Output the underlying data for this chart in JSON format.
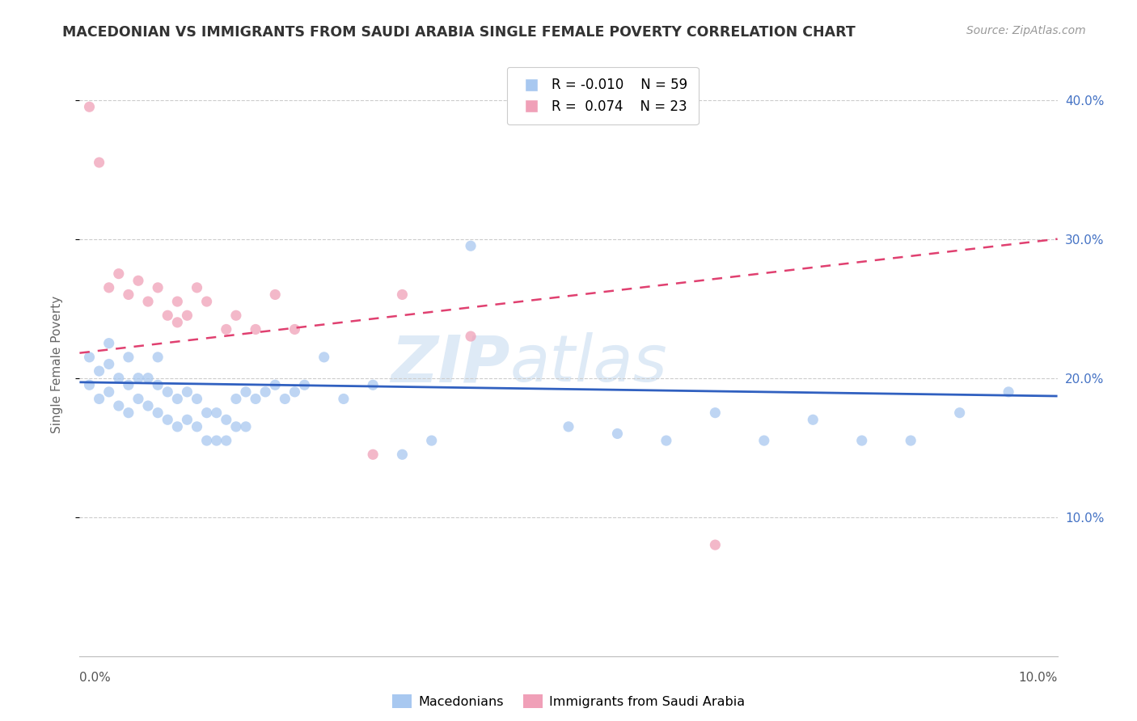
{
  "title": "MACEDONIAN VS IMMIGRANTS FROM SAUDI ARABIA SINGLE FEMALE POVERTY CORRELATION CHART",
  "source": "Source: ZipAtlas.com",
  "ylabel": "Single Female Poverty",
  "watermark_text": "ZIP",
  "watermark_text2": "atlas",
  "legend_macedonian_R": "-0.010",
  "legend_macedonian_N": "59",
  "legend_saudi_R": "0.074",
  "legend_saudi_N": "23",
  "macedonian_color": "#A8C8F0",
  "saudi_color": "#F0A0B8",
  "macedonian_trendline_color": "#3060C0",
  "saudi_trendline_color": "#E04070",
  "xlim": [
    0.0,
    0.1
  ],
  "ylim": [
    0.0,
    0.42
  ],
  "yticks": [
    0.1,
    0.2,
    0.3,
    0.4
  ],
  "ytick_labels": [
    "10.0%",
    "20.0%",
    "30.0%",
    "40.0%"
  ],
  "macedonian_x": [
    0.001,
    0.001,
    0.002,
    0.002,
    0.003,
    0.003,
    0.003,
    0.004,
    0.004,
    0.005,
    0.005,
    0.005,
    0.006,
    0.006,
    0.007,
    0.007,
    0.008,
    0.008,
    0.008,
    0.009,
    0.009,
    0.01,
    0.01,
    0.011,
    0.011,
    0.012,
    0.012,
    0.013,
    0.013,
    0.014,
    0.014,
    0.015,
    0.015,
    0.016,
    0.016,
    0.017,
    0.017,
    0.018,
    0.019,
    0.02,
    0.021,
    0.022,
    0.023,
    0.025,
    0.027,
    0.03,
    0.033,
    0.036,
    0.04,
    0.05,
    0.055,
    0.06,
    0.065,
    0.07,
    0.075,
    0.08,
    0.085,
    0.09,
    0.095
  ],
  "macedonian_y": [
    0.195,
    0.215,
    0.185,
    0.205,
    0.19,
    0.21,
    0.225,
    0.18,
    0.2,
    0.175,
    0.195,
    0.215,
    0.185,
    0.2,
    0.18,
    0.2,
    0.175,
    0.195,
    0.215,
    0.17,
    0.19,
    0.165,
    0.185,
    0.17,
    0.19,
    0.165,
    0.185,
    0.155,
    0.175,
    0.155,
    0.175,
    0.155,
    0.17,
    0.165,
    0.185,
    0.165,
    0.19,
    0.185,
    0.19,
    0.195,
    0.185,
    0.19,
    0.195,
    0.215,
    0.185,
    0.195,
    0.145,
    0.155,
    0.295,
    0.165,
    0.16,
    0.155,
    0.175,
    0.155,
    0.17,
    0.155,
    0.155,
    0.175,
    0.19
  ],
  "saudi_x": [
    0.001,
    0.002,
    0.003,
    0.004,
    0.005,
    0.006,
    0.007,
    0.008,
    0.009,
    0.01,
    0.01,
    0.011,
    0.012,
    0.013,
    0.015,
    0.016,
    0.018,
    0.02,
    0.022,
    0.03,
    0.033,
    0.04,
    0.065
  ],
  "saudi_y": [
    0.395,
    0.355,
    0.265,
    0.275,
    0.26,
    0.27,
    0.255,
    0.265,
    0.245,
    0.255,
    0.24,
    0.245,
    0.265,
    0.255,
    0.235,
    0.245,
    0.235,
    0.26,
    0.235,
    0.145,
    0.26,
    0.23,
    0.08
  ],
  "mac_trendline_x": [
    0.0,
    0.1
  ],
  "mac_trendline_y": [
    0.197,
    0.187
  ],
  "saudi_trendline_x": [
    0.0,
    0.1
  ],
  "saudi_trendline_y": [
    0.218,
    0.3
  ]
}
